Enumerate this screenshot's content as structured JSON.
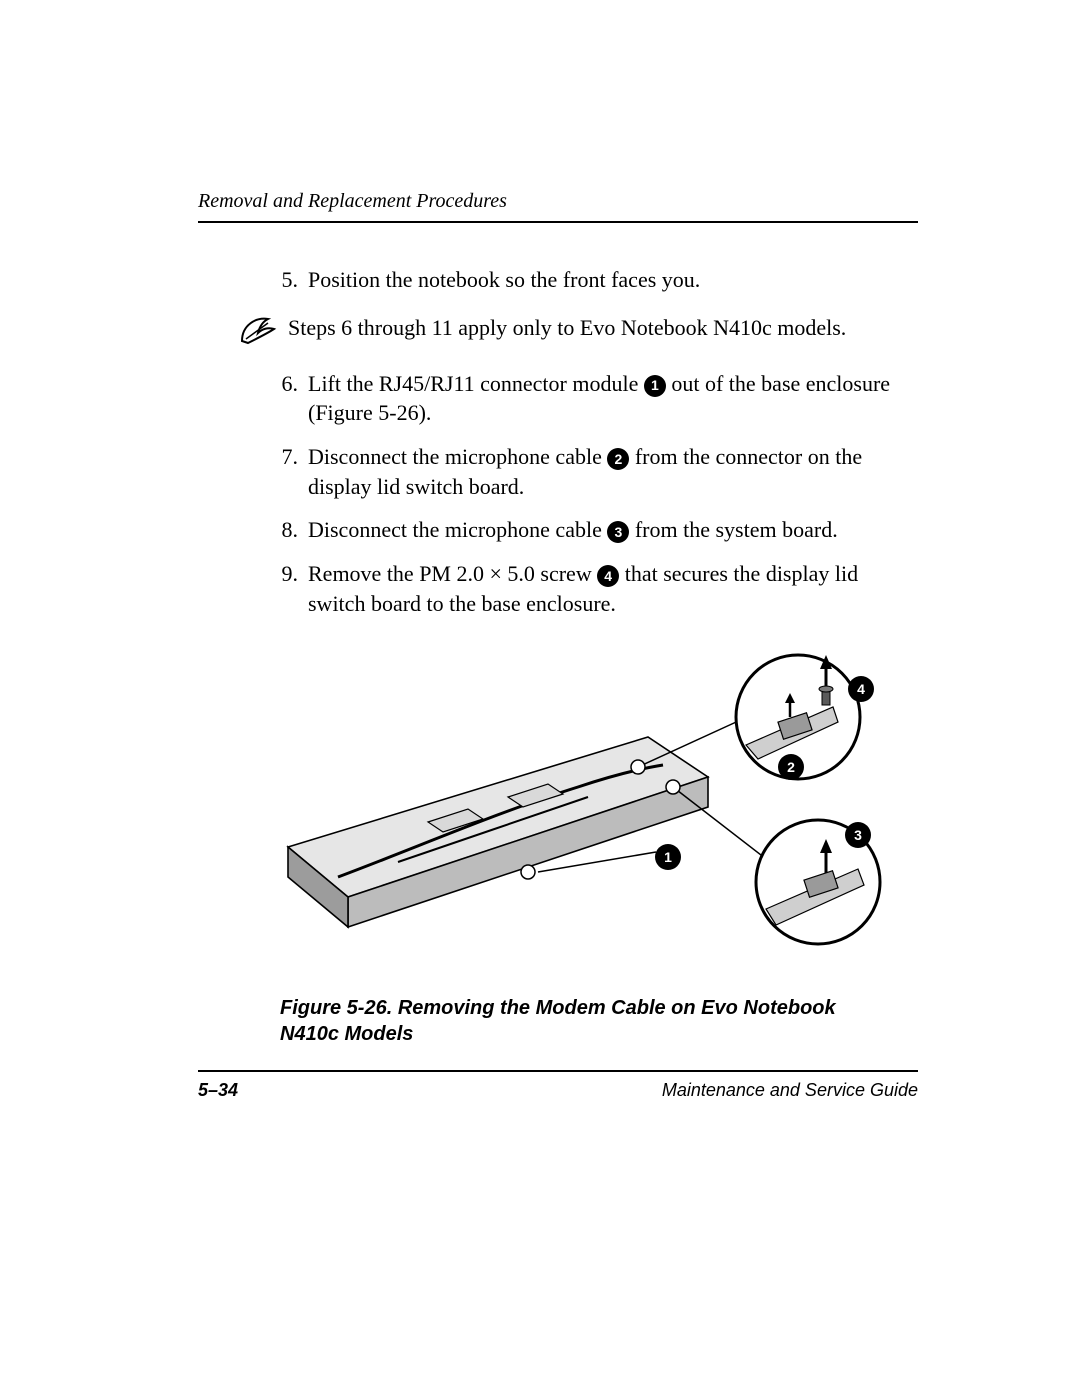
{
  "header": {
    "section_title": "Removal and Replacement Procedures"
  },
  "steps": [
    {
      "number": "5.",
      "text_parts": [
        "Position the notebook so the front faces you."
      ]
    },
    {
      "number": "6.",
      "text_parts": [
        "Lift the RJ45/RJ11 connector module ",
        {
          "callout": "1"
        },
        " out of the base enclosure (Figure 5-26)."
      ]
    },
    {
      "number": "7.",
      "text_parts": [
        "Disconnect the microphone cable ",
        {
          "callout": "2"
        },
        " from the connector on the display lid switch board."
      ]
    },
    {
      "number": "8.",
      "text_parts": [
        "Disconnect the microphone cable ",
        {
          "callout": "3"
        },
        " from the system board."
      ]
    },
    {
      "number": "9.",
      "text_parts": [
        "Remove the PM 2.0 × 5.0 screw ",
        {
          "callout": "4"
        },
        " that secures the display lid switch board to the base enclosure."
      ]
    }
  ],
  "note": {
    "text": "Steps 6 through 11 apply only to Evo Notebook N410c models."
  },
  "figure": {
    "caption": "Figure 5-26. Removing the Modem Cable on Evo Notebook N410c Models",
    "callouts": [
      "1",
      "2",
      "3",
      "4"
    ],
    "colors": {
      "stroke": "#000000",
      "fill_light": "#ffffff",
      "fill_grey": "#b8b8b8",
      "fill_dark": "#5a5a5a"
    }
  },
  "footer": {
    "page_number": "5–34",
    "guide_title": "Maintenance and Service Guide"
  }
}
